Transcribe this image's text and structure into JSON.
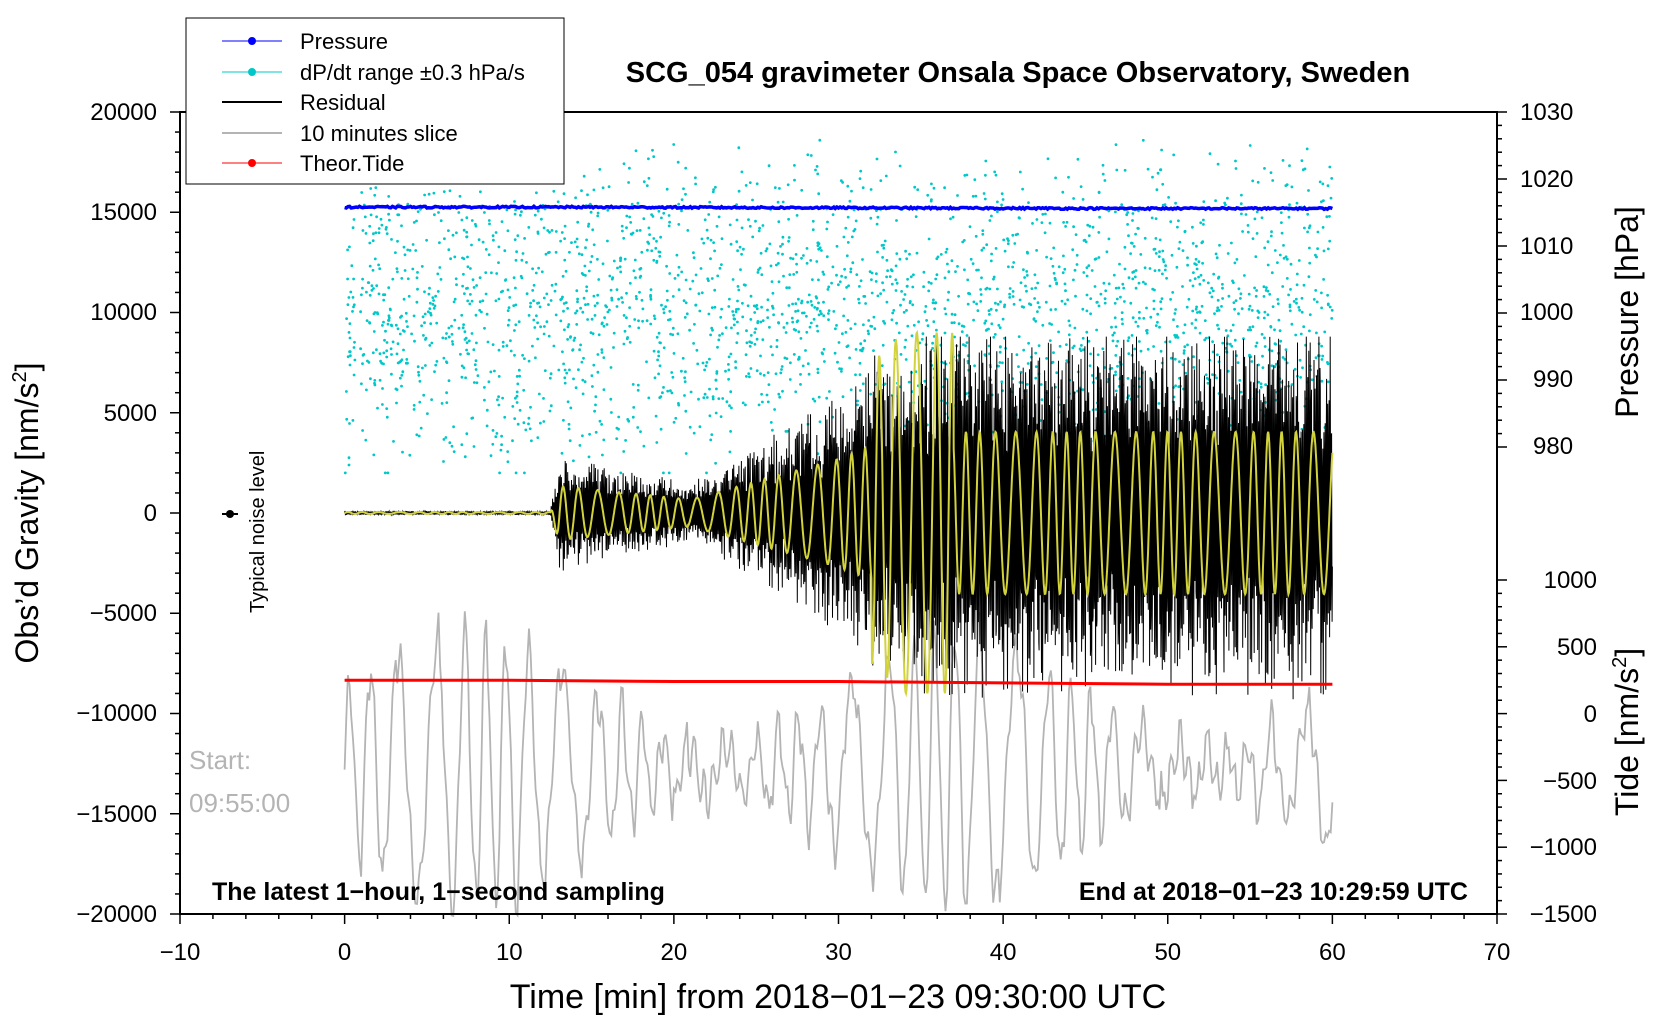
{
  "chart_data": {
    "type": "line",
    "title": "SCG_054 gravimeter Onsala Space Observatory, Sweden",
    "xlabel": "Time [min] from 2018−01−23 09:30:00 UTC",
    "ylabel_main": "Obs’d Gravity [nm/s",
    "ylabel_sup": "2",
    "ylabel_close": "]",
    "y2label": "Pressure [hPa]",
    "y3label_main": "Tide [nm/s",
    "y3label_sup": "2",
    "y3label_close": "]",
    "xlim": [
      -10,
      70
    ],
    "ylim": [
      -20000,
      20000
    ],
    "pressure_lim": [
      970,
      1030
    ],
    "tide_lim": [
      -1500,
      1500
    ],
    "x_ticks": [
      "−10",
      "0",
      "10",
      "20",
      "30",
      "40",
      "50",
      "60",
      "70"
    ],
    "y_ticks": [
      "20000",
      "15000",
      "10000",
      "5000",
      "0",
      "−5000",
      "−10000",
      "−15000",
      "−20000"
    ],
    "pressure_ticks": [
      "1030",
      "1020",
      "1010",
      "1000",
      "990",
      "980"
    ],
    "tide_ticks": [
      "1000",
      "500",
      "0",
      "−500",
      "−1000",
      "−1500"
    ],
    "legend": [
      {
        "label": "Pressure",
        "color": "#0000ff",
        "marker": true
      },
      {
        "label": "dP/dt range ±0.3 hPa/s",
        "color": "#00c8c8",
        "marker": true
      },
      {
        "label": "Residual",
        "color": "#000000",
        "marker": false
      },
      {
        "label": "10 minutes slice",
        "color": "#b4b4b4",
        "marker": false
      },
      {
        "label": "Theor.Tide",
        "color": "#ff0000",
        "marker": true
      }
    ],
    "annotations": {
      "noise_label": "Typical noise level",
      "start_label": "Start:",
      "start_time": "09:55:00",
      "bottom_left": "The latest 1−hour, 1−second sampling",
      "bottom_right": "End at 2018−01−23 10:29:59 UTC"
    },
    "series": [
      {
        "name": "Pressure",
        "axis": "pressure",
        "x_range": [
          0,
          60
        ],
        "values_hPa": [
          1015.8,
          1015.8,
          1015.7,
          1015.6,
          1015.6
        ]
      },
      {
        "name": "Theor.Tide",
        "axis": "tide",
        "x_range": [
          0,
          60
        ],
        "values_nm_s2": [
          250,
          250,
          240,
          240,
          230,
          220,
          220
        ]
      },
      {
        "name": "Residual",
        "axis": "gravity",
        "x_range": [
          0,
          60
        ],
        "envelope": [
          [
            0,
            100
          ],
          [
            12.5,
            100
          ],
          [
            13,
            3000
          ],
          [
            21,
            1500
          ],
          [
            26,
            4000
          ],
          [
            30,
            6000
          ],
          [
            34,
            9000
          ],
          [
            45,
            9000
          ],
          [
            60,
            9000
          ]
        ]
      },
      {
        "name": "10 minutes slice",
        "axis": "gravity",
        "x_range": [
          0,
          60
        ],
        "start": "09:55:00"
      },
      {
        "name": "dP/dt range ±0.3 hPa/s",
        "axis": "gravity",
        "x_range": [
          0,
          60
        ],
        "y_range": [
          2000,
          20000
        ]
      }
    ],
    "colors": {
      "pressure": "#0000ff",
      "dpdt": "#00c8c8",
      "residual": "#000000",
      "slice": "#b4b4b4",
      "tide": "#ff0000",
      "fit": "#d2d23c"
    }
  }
}
